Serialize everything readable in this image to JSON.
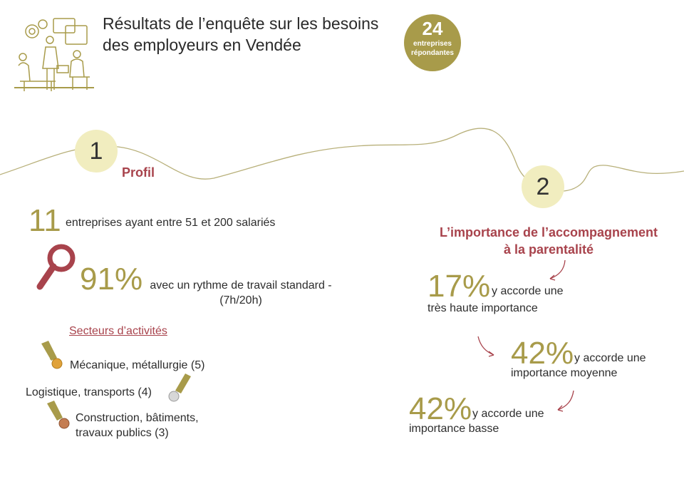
{
  "header": {
    "title_line1": "Résultats de l’enquête sur les besoins",
    "title_line2": "des employeurs en Vendée",
    "badge_number": "24",
    "badge_label_line1": "entreprises",
    "badge_label_line2": "répondantes"
  },
  "section1": {
    "number": "1",
    "title": "Profil",
    "stat1_value": "11",
    "stat1_text": "entreprises ayant entre 51 et 200 salariés",
    "stat2_value": "91%",
    "stat2_text_line1": "avec un rythme de travail standard -",
    "stat2_text_line2": "(7h/20h)",
    "sectors_title": "Secteurs d’activités",
    "sectors": [
      "Mécanique, métallurgie (5)",
      "Logistique, transports (4)",
      "Construction, bâtiments,",
      "travaux publics (3)"
    ]
  },
  "section2": {
    "number": "2",
    "title_line1": "L’importance de l’accompagnement",
    "title_line2": "à la parentalité",
    "items": [
      {
        "value": "17%",
        "text_line1": "y accorde une",
        "text_line2": "très haute importance"
      },
      {
        "value": "42%",
        "text_line1": "y accorde une",
        "text_line2": "importance moyenne"
      },
      {
        "value": "42%",
        "text_line1": "y accorde une",
        "text_line2": "importance basse"
      }
    ]
  },
  "colors": {
    "gold": "#a89b4a",
    "red": "#a8434c",
    "pale": "#f1edbf"
  },
  "icons": [
    "team-work-illustration",
    "magnifier-icon",
    "gold-medal-icon",
    "silver-medal-icon",
    "bronze-medal-icon",
    "curved-arrow-icon"
  ]
}
